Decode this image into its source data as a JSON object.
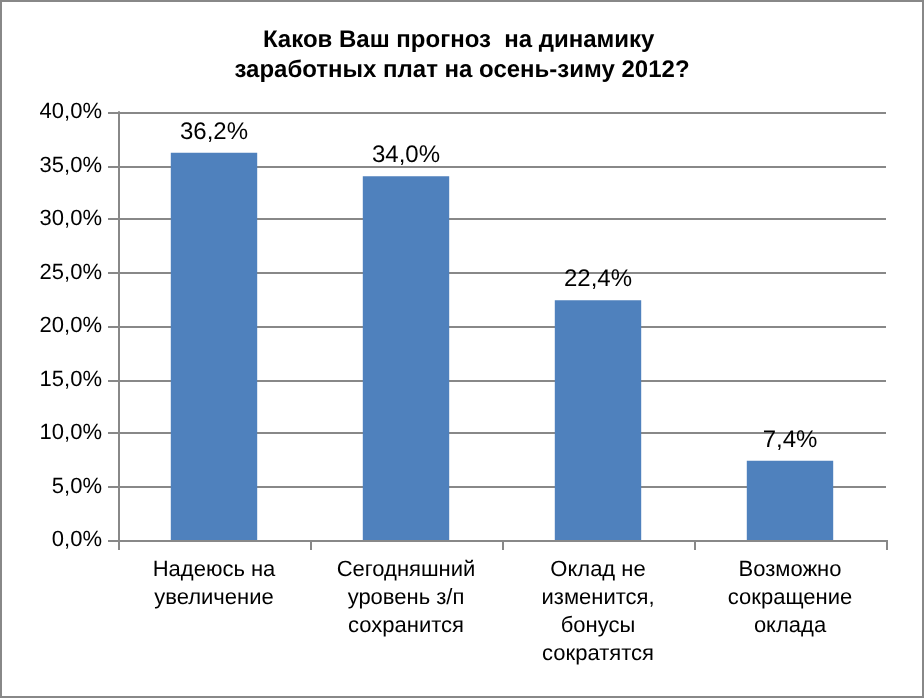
{
  "chart_data": {
    "type": "bar",
    "title": "Каков Ваш прогноз  на динамику заработных плат на осень-зиму 2012?",
    "categories": [
      "Надеюсь на увеличение",
      "Сегодняшний уровень з/п сохранится",
      "Оклад не изменится, бонусы сократятся",
      "Возможно сокращение оклада"
    ],
    "values": [
      36.2,
      34.0,
      22.4,
      7.4
    ],
    "value_labels": [
      "36,2%",
      "34,0%",
      "22,4%",
      "7,4%"
    ],
    "color": "#4f81bd",
    "ylim": [
      0,
      40
    ],
    "yticks": [
      {
        "value": 0,
        "label": "0,0%"
      },
      {
        "value": 5,
        "label": "5,0%"
      },
      {
        "value": 10,
        "label": "10,0%"
      },
      {
        "value": 15,
        "label": "15,0%"
      },
      {
        "value": 20,
        "label": "20,0%"
      },
      {
        "value": 25,
        "label": "25,0%"
      },
      {
        "value": 30,
        "label": "30,0%"
      },
      {
        "value": 35,
        "label": "35,0%"
      },
      {
        "value": 40,
        "label": "40,0%"
      }
    ],
    "grid": "y"
  }
}
